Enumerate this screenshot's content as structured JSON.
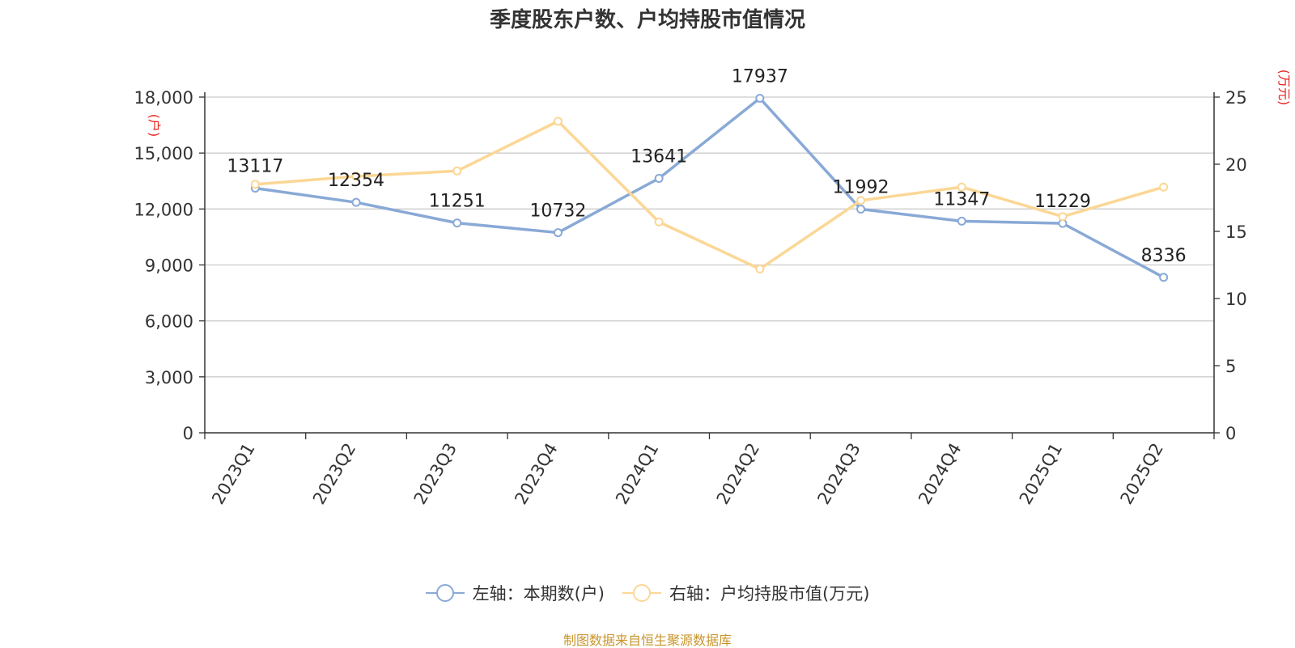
{
  "chart_data": {
    "type": "line",
    "title": "季度股东户数、户均持股市值情况",
    "categories": [
      "2023Q1",
      "2023Q2",
      "2023Q3",
      "2023Q4",
      "2024Q1",
      "2024Q2",
      "2024Q3",
      "2024Q4",
      "2025Q1",
      "2025Q2"
    ],
    "left_axis": {
      "unit": "(户)",
      "ylim": [
        0,
        18000
      ],
      "ticks": [
        "0",
        "3,000",
        "6,000",
        "9,000",
        "12,000",
        "15,000",
        "18,000"
      ]
    },
    "right_axis": {
      "unit": "(万元)",
      "ylim": [
        0,
        25
      ],
      "ticks": [
        "0",
        "5",
        "10",
        "15",
        "20",
        "25"
      ]
    },
    "grid": true,
    "legend_position": "bottom",
    "series": [
      {
        "name": "左轴：本期数(户)",
        "axis": "left",
        "color": "#89a9d6",
        "values": [
          13117,
          12354,
          11251,
          10732,
          13641,
          17937,
          11992,
          11347,
          11229,
          8336
        ],
        "labels": [
          "13117",
          "12354",
          "11251",
          "10732",
          "13641",
          "17937",
          "11992",
          "11347",
          "11229",
          "8336"
        ]
      },
      {
        "name": "右轴：户均持股市值(万元)",
        "axis": "right",
        "color": "#fbd795",
        "values": [
          18.5,
          19.1,
          19.5,
          23.2,
          15.7,
          12.2,
          17.3,
          18.3,
          16.1,
          18.3
        ]
      }
    ]
  },
  "source_text": "制图数据来自恒生聚源数据库"
}
